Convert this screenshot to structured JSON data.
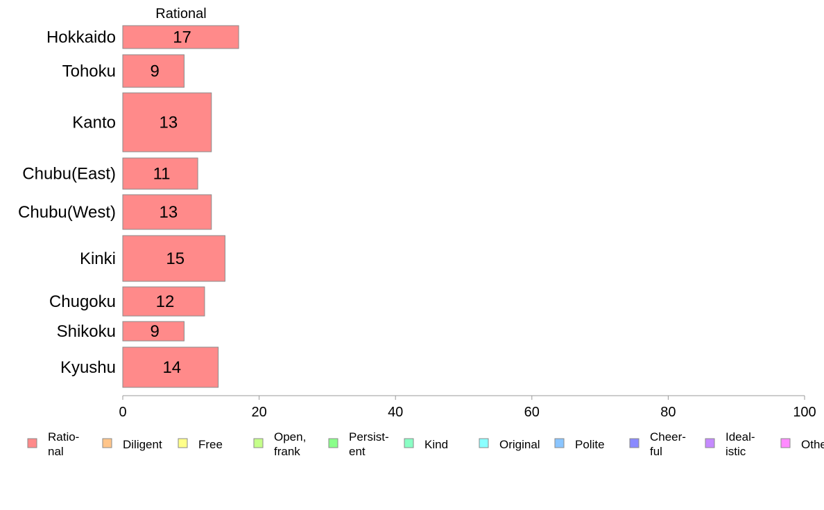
{
  "chart_data": {
    "type": "bar",
    "orientation": "horizontal",
    "series_label": "Rational",
    "categories": [
      "Hokkaido",
      "Tohoku",
      "Kanto",
      "Chubu(East)",
      "Chubu(West)",
      "Kinki",
      "Chugoku",
      "Shikoku",
      "Kyushu"
    ],
    "series": [
      {
        "name": "Rational",
        "values": [
          17,
          9,
          13,
          11,
          13,
          15,
          12,
          9,
          14
        ],
        "color": "#FF8A8A"
      }
    ],
    "xlim": [
      0,
      100
    ],
    "xticks": [
      0,
      20,
      40,
      60,
      80,
      100
    ],
    "grid": false,
    "legend_position": "bottom",
    "legend": [
      {
        "lines": [
          "Ratio-",
          "nal"
        ],
        "color": "#FF8A8A"
      },
      {
        "lines": [
          "Diligent"
        ],
        "color": "#FFC58A"
      },
      {
        "lines": [
          "Free"
        ],
        "color": "#FFFF8A"
      },
      {
        "lines": [
          "Open,",
          "frank"
        ],
        "color": "#C5FF8A"
      },
      {
        "lines": [
          "Persist-",
          "ent"
        ],
        "color": "#8AFF8A"
      },
      {
        "lines": [
          "Kind"
        ],
        "color": "#8AFFC5"
      },
      {
        "lines": [
          "Original"
        ],
        "color": "#8AFFFF"
      },
      {
        "lines": [
          "Polite"
        ],
        "color": "#8AC5FF"
      },
      {
        "lines": [
          "Cheer-",
          "ful"
        ],
        "color": "#8A8AFF"
      },
      {
        "lines": [
          "Ideal-",
          "istic"
        ],
        "color": "#C58AFF"
      },
      {
        "lines": [
          "Other"
        ],
        "color": "#FF8AFF"
      }
    ]
  }
}
